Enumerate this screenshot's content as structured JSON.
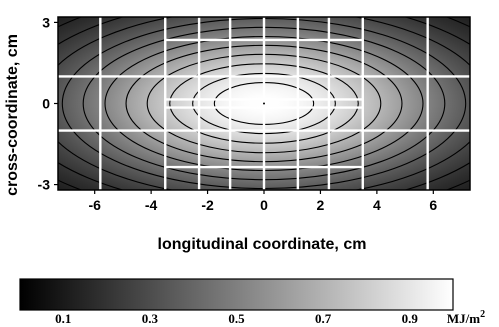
{
  "chart_data": {
    "type": "heatmap",
    "title": "",
    "xlabel": "longitudinal coordinate, cm",
    "ylabel": "cross-coordinate, cm",
    "xlim": [
      -7.3,
      7.3
    ],
    "ylim": [
      -3.2,
      3.2
    ],
    "x_ticks": [
      -6,
      -4,
      -2,
      0,
      2,
      4,
      6
    ],
    "y_ticks": [
      -3,
      0,
      3
    ],
    "x_tick_labels": [
      "-6",
      "-4",
      "-2",
      "0",
      "2",
      "4",
      "6"
    ],
    "y_tick_labels": [
      "-3",
      "0",
      "3"
    ],
    "field": {
      "center": [
        0,
        0
      ],
      "peak_value": 1.0,
      "sigma_x_cm": 5.0,
      "sigma_y_cm": 2.2
    },
    "contour_levels": [
      0.94,
      0.88,
      0.8,
      0.71,
      0.62,
      0.53,
      0.44,
      0.36,
      0.28,
      0.21,
      0.15
    ],
    "tile_grid": {
      "columns_cm": [
        -7.3,
        -5.8,
        -3.5,
        -2.3,
        -1.2,
        0,
        1.2,
        2.3,
        3.5,
        5.8,
        7.3
      ],
      "rows_cm": [
        -3.2,
        -2.35,
        -1.0,
        -0.15,
        0.15,
        1.0,
        2.35,
        3.2
      ]
    },
    "colorbar": {
      "range": [
        0.0,
        1.0
      ],
      "tick_values": [
        0.1,
        0.3,
        0.5,
        0.7,
        0.9
      ],
      "tick_labels": [
        "0.1",
        "0.3",
        "0.5",
        "0.7",
        "0.9"
      ],
      "unit": "MJ/m",
      "unit_superscript": "2",
      "colormap": [
        "#000000",
        "#ffffff"
      ]
    }
  }
}
